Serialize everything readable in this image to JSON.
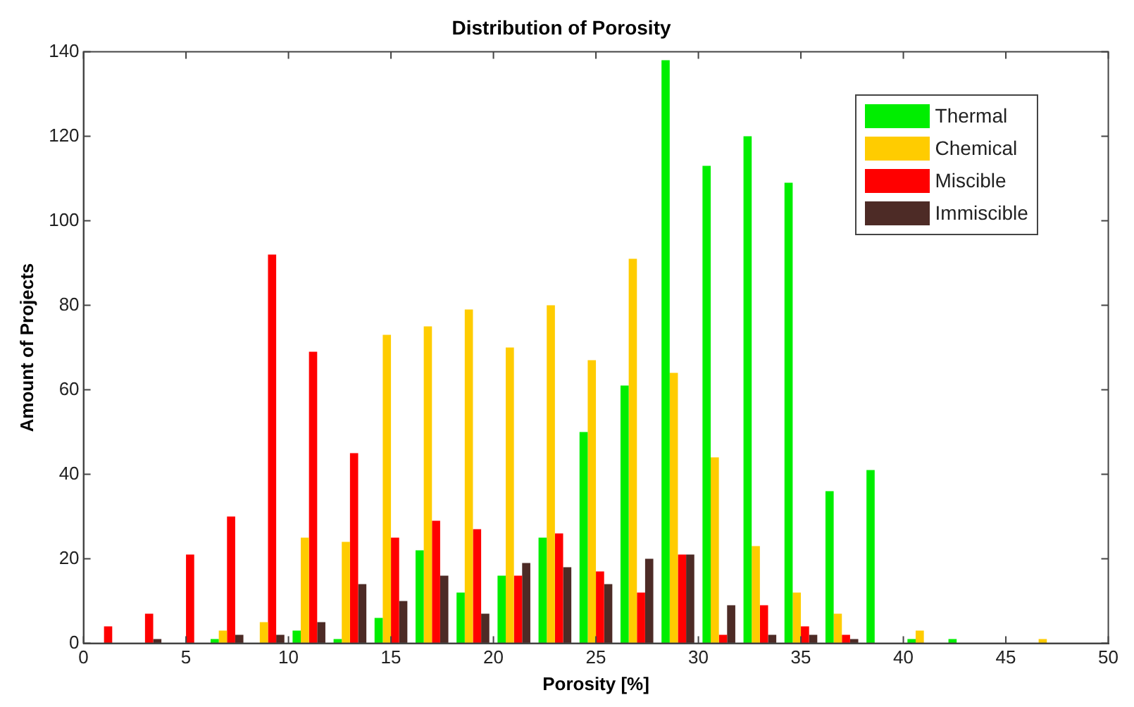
{
  "chart_data": {
    "type": "histogram",
    "title": "Distribution of Porosity",
    "xlabel": "Porosity [%]",
    "ylabel": "Amount of Projects",
    "bins": [
      0,
      2,
      4,
      6,
      8,
      10,
      12,
      14,
      16,
      18,
      20,
      22,
      24,
      26,
      28,
      30,
      32,
      34,
      36,
      38,
      40,
      42,
      44,
      46,
      48,
      50
    ],
    "series": [
      {
        "name": "Thermal",
        "color": "#00ee00",
        "values": [
          0,
          0,
          0,
          1,
          0,
          3,
          1,
          6,
          22,
          12,
          16,
          25,
          50,
          61,
          138,
          113,
          120,
          109,
          36,
          41,
          1,
          1,
          0,
          0,
          0
        ]
      },
      {
        "name": "Chemical",
        "color": "#ffcc00",
        "values": [
          0,
          0,
          0,
          3,
          5,
          25,
          24,
          73,
          75,
          79,
          70,
          80,
          67,
          91,
          64,
          44,
          23,
          12,
          7,
          0,
          3,
          0,
          0,
          1,
          0
        ]
      },
      {
        "name": "Miscible",
        "color": "#ff0000",
        "values": [
          4,
          7,
          21,
          30,
          92,
          69,
          45,
          25,
          29,
          27,
          16,
          26,
          17,
          12,
          21,
          2,
          9,
          4,
          2,
          0,
          0,
          0,
          0,
          0,
          0
        ]
      },
      {
        "name": "Immiscible",
        "color": "#4d2b26",
        "values": [
          0,
          1,
          0,
          2,
          2,
          5,
          14,
          10,
          16,
          7,
          19,
          18,
          14,
          20,
          21,
          9,
          2,
          2,
          1,
          0,
          0,
          0,
          0,
          0,
          0
        ]
      }
    ],
    "xlim": [
      0,
      50
    ],
    "xticks": [
      0,
      5,
      10,
      15,
      20,
      25,
      30,
      35,
      40,
      45,
      50
    ],
    "ylim": [
      0,
      140
    ],
    "yticks": [
      0,
      20,
      40,
      60,
      80,
      100,
      120,
      140
    ],
    "grid": false,
    "legend": "top right"
  }
}
